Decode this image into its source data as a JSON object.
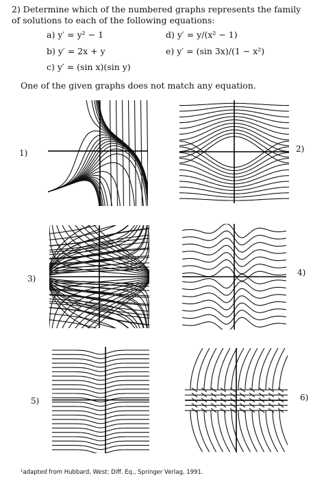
{
  "problem": {
    "statement": "2) Determine which of the numbered graphs represents the family of solutions to each of the following equations:",
    "equations": [
      {
        "id": "a",
        "label": "a) y′ = y² − 1"
      },
      {
        "id": "b",
        "label": "b) y′ = 2x + y"
      },
      {
        "id": "c",
        "label": "c) y′ = (sin x)(sin y)"
      },
      {
        "id": "d",
        "label": "d) y′ = y/(x² − 1)"
      },
      {
        "id": "e",
        "label": "e) y′ = (sin 3x)/(1 − x²)"
      }
    ],
    "note": "One of the given graphs does not match any equation."
  },
  "graphs": [
    {
      "label": "1)"
    },
    {
      "label": "2)"
    },
    {
      "label": "3)"
    },
    {
      "label": "4)"
    },
    {
      "label": "5)"
    },
    {
      "label": "6)"
    }
  ],
  "footnote": "¹adapted from Hubbard, West: Diff. Eq., Springer Verlag, 1991."
}
